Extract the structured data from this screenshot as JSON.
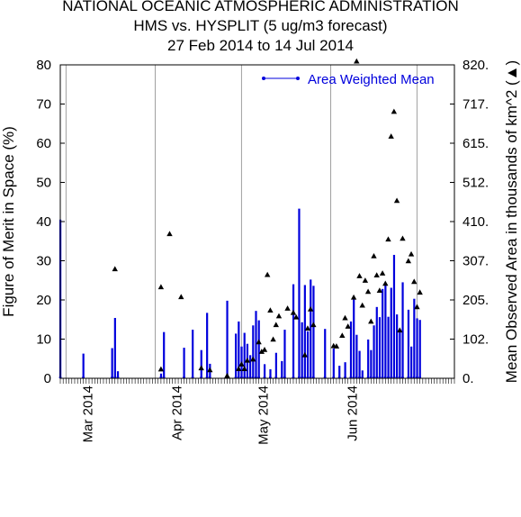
{
  "titles": {
    "line1": "NATIONAL OCEANIC ATMOSPHERIC ADMINISTRATION",
    "line2": "HMS vs. HYSPLIT (5 ug/m3 forecast)",
    "line3": "27 Feb 2014 to 14 Jul 2014"
  },
  "colors": {
    "series": "#0000dd",
    "marker": "#000000",
    "grid": "#a0a0a0"
  },
  "chart_data": {
    "type": "bar",
    "ylabel": "Figure of Merit in Space (%)",
    "y2label": "Mean Observed Area in thousands of km^2 (▲)",
    "ylim": [
      0,
      80
    ],
    "yticks": [
      0,
      10,
      20,
      30,
      40,
      50,
      60,
      70,
      80
    ],
    "y2lim": [
      0,
      820
    ],
    "y2ticks": [
      "0.",
      "102.",
      "205.",
      "307.",
      "410.",
      "512.",
      "615.",
      "717.",
      "820."
    ],
    "xlim": [
      "2014-02-27",
      "2014-07-14"
    ],
    "month_labels": [
      {
        "date": "2014-03-01",
        "label": "Mar 2014"
      },
      {
        "date": "2014-04-01",
        "label": "Apr 2014"
      },
      {
        "date": "2014-05-01",
        "label": "May 2014"
      },
      {
        "date": "2014-06-01",
        "label": "Jun 2014"
      }
    ],
    "grid_x": true,
    "legend": {
      "label": "Area Weighted Mean",
      "placement": "top-right"
    },
    "series": [
      {
        "name": "Area Weighted Mean",
        "points": [
          [
            "2014-02-27",
            40.5
          ],
          [
            "2014-03-07",
            6.3
          ],
          [
            "2014-03-17",
            7.7
          ],
          [
            "2014-03-18",
            15.4
          ],
          [
            "2014-03-19",
            1.8
          ],
          [
            "2014-04-03",
            1.2
          ],
          [
            "2014-04-04",
            11.8
          ],
          [
            "2014-04-11",
            7.8
          ],
          [
            "2014-04-14",
            12.4
          ],
          [
            "2014-04-17",
            7.2
          ],
          [
            "2014-04-19",
            16.7
          ],
          [
            "2014-04-20",
            3.7
          ],
          [
            "2014-04-26",
            19.8
          ],
          [
            "2014-04-29",
            11.4
          ],
          [
            "2014-04-30",
            14.5
          ],
          [
            "2014-05-01",
            8.1
          ],
          [
            "2014-05-02",
            11.6
          ],
          [
            "2014-05-03",
            8.8
          ],
          [
            "2014-05-04",
            5.9
          ],
          [
            "2014-05-05",
            13.5
          ],
          [
            "2014-05-06",
            17.2
          ],
          [
            "2014-05-07",
            14.8
          ],
          [
            "2014-05-09",
            3.6
          ],
          [
            "2014-05-11",
            2.3
          ],
          [
            "2014-05-13",
            6.5
          ],
          [
            "2014-05-15",
            4.4
          ],
          [
            "2014-05-16",
            12.4
          ],
          [
            "2014-05-19",
            24.0
          ],
          [
            "2014-05-21",
            43.3
          ],
          [
            "2014-05-22",
            14.3
          ],
          [
            "2014-05-23",
            23.8
          ],
          [
            "2014-05-24",
            12.0
          ],
          [
            "2014-05-25",
            25.2
          ],
          [
            "2014-05-26",
            23.6
          ],
          [
            "2014-05-30",
            12.6
          ],
          [
            "2014-06-02",
            7.6
          ],
          [
            "2014-06-04",
            3.2
          ],
          [
            "2014-06-06",
            4.1
          ],
          [
            "2014-06-08",
            14.5
          ],
          [
            "2014-06-09",
            20.6
          ],
          [
            "2014-06-10",
            11.1
          ],
          [
            "2014-06-11",
            7.0
          ],
          [
            "2014-06-12",
            2.0
          ],
          [
            "2014-06-14",
            9.9
          ],
          [
            "2014-06-15",
            7.2
          ],
          [
            "2014-06-16",
            13.5
          ],
          [
            "2014-06-17",
            18.2
          ],
          [
            "2014-06-18",
            15.6
          ],
          [
            "2014-06-19",
            22.8
          ],
          [
            "2014-06-20",
            24.4
          ],
          [
            "2014-06-21",
            15.7
          ],
          [
            "2014-06-22",
            23.1
          ],
          [
            "2014-06-23",
            31.5
          ],
          [
            "2014-06-24",
            16.3
          ],
          [
            "2014-06-25",
            11.8
          ],
          [
            "2014-06-26",
            24.5
          ],
          [
            "2014-06-28",
            17.5
          ],
          [
            "2014-06-29",
            8.1
          ],
          [
            "2014-06-30",
            20.3
          ],
          [
            "2014-07-01",
            15.3
          ],
          [
            "2014-07-02",
            14.9
          ]
        ]
      },
      {
        "name": "Mean Observed Area",
        "axis": "right",
        "points": [
          [
            "2014-03-18",
            286
          ],
          [
            "2014-04-03",
            239
          ],
          [
            "2014-04-03",
            24
          ],
          [
            "2014-04-06",
            378
          ],
          [
            "2014-04-10",
            213
          ],
          [
            "2014-04-17",
            27
          ],
          [
            "2014-04-20",
            22
          ],
          [
            "2014-04-26",
            7
          ],
          [
            "2014-04-30",
            25
          ],
          [
            "2014-05-01",
            37
          ],
          [
            "2014-05-02",
            25
          ],
          [
            "2014-05-03",
            47
          ],
          [
            "2014-05-05",
            50
          ],
          [
            "2014-05-07",
            95
          ],
          [
            "2014-05-08",
            70
          ],
          [
            "2014-05-09",
            75
          ],
          [
            "2014-05-10",
            271
          ],
          [
            "2014-05-11",
            178
          ],
          [
            "2014-05-12",
            102
          ],
          [
            "2014-05-13",
            140
          ],
          [
            "2014-05-14",
            163
          ],
          [
            "2014-05-17",
            183
          ],
          [
            "2014-05-19",
            172
          ],
          [
            "2014-05-20",
            160
          ],
          [
            "2014-05-23",
            61
          ],
          [
            "2014-05-24",
            131
          ],
          [
            "2014-05-25",
            181
          ],
          [
            "2014-05-26",
            140
          ],
          [
            "2014-06-02",
            85
          ],
          [
            "2014-06-03",
            84
          ],
          [
            "2014-06-05",
            112
          ],
          [
            "2014-06-06",
            158
          ],
          [
            "2014-06-07",
            136
          ],
          [
            "2014-06-09",
            212
          ],
          [
            "2014-06-11",
            268
          ],
          [
            "2014-06-12",
            191
          ],
          [
            "2014-06-13",
            256
          ],
          [
            "2014-06-14",
            227
          ],
          [
            "2014-06-15",
            149
          ],
          [
            "2014-06-16",
            320
          ],
          [
            "2014-06-17",
            270
          ],
          [
            "2014-06-18",
            230
          ],
          [
            "2014-06-19",
            275
          ],
          [
            "2014-06-20",
            248
          ],
          [
            "2014-06-21",
            364
          ],
          [
            "2014-06-22",
            633
          ],
          [
            "2014-06-23",
            698
          ],
          [
            "2014-06-24",
            465
          ],
          [
            "2014-06-25",
            126
          ],
          [
            "2014-06-26",
            366
          ],
          [
            "2014-06-28",
            307
          ],
          [
            "2014-06-29",
            325
          ],
          [
            "2014-06-30",
            253
          ],
          [
            "2014-07-01",
            187
          ],
          [
            "2014-07-02",
            225
          ],
          [
            "2014-06-10",
            830
          ]
        ]
      }
    ]
  }
}
